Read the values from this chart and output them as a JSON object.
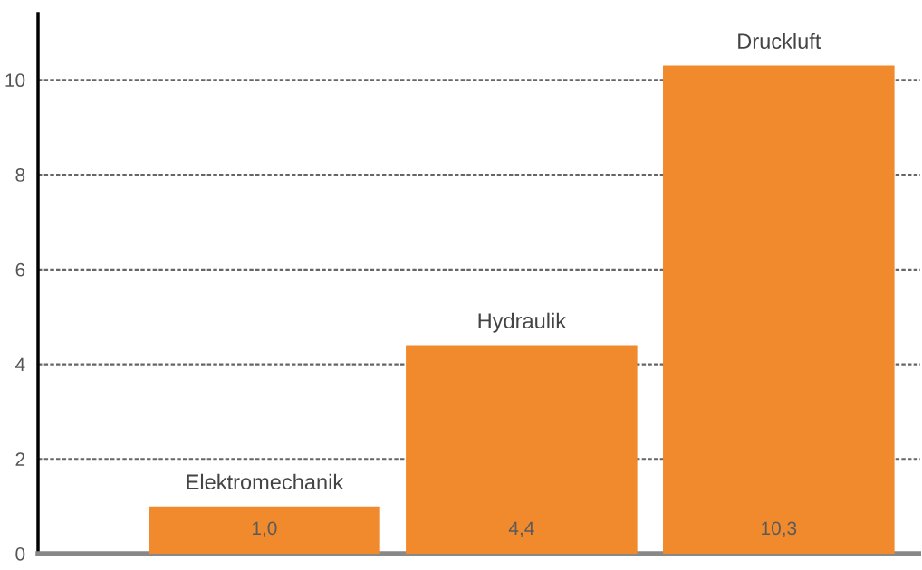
{
  "chart_data": {
    "type": "bar",
    "categories": [
      "Elektromechanik",
      "Hydraulik",
      "Druckluft"
    ],
    "values": [
      1.0,
      4.4,
      10.3
    ],
    "value_labels": [
      "1,0",
      "4,4",
      "10,3"
    ],
    "color": "#f08a2c",
    "ylim": [
      0,
      11.4
    ],
    "yticks": [
      0,
      2,
      4,
      6,
      8,
      10
    ],
    "grid": "y"
  }
}
